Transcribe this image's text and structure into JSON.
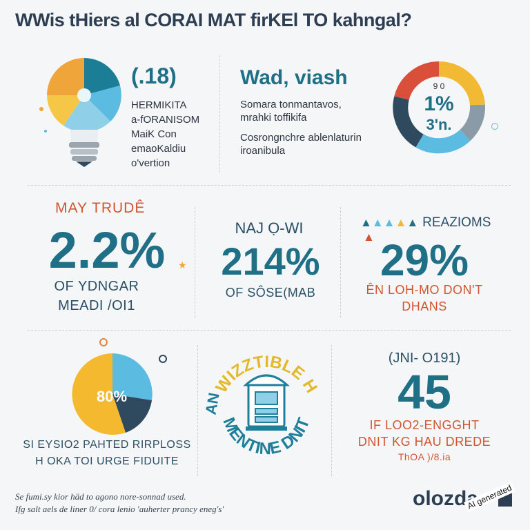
{
  "title": "WWis tHiers al CORAI MAT firKEl TO kahngal?",
  "top_left": {
    "value": "(.18)",
    "lines": [
      "HERMIKITA",
      "a-fORANISOM",
      "MaiK Con",
      "emaoKaldiu",
      "o'vertion"
    ]
  },
  "top_middle": {
    "heading": "Wad, viash",
    "lines": [
      "Somara tonmantavos,",
      "mrahki toffikifa",
      "Cosrongnchre ablenlaturin",
      "iroanibula"
    ]
  },
  "top_right_donut": {
    "small_label": "9 0",
    "percent": "1%",
    "sub": "3'n.",
    "colors": [
      "#f2b934",
      "#8a9aa6",
      "#5bbbe0",
      "#2f4a5e",
      "#d94f3a"
    ]
  },
  "stat1": {
    "label": "MAY TRUDÊ",
    "value": "2.2%",
    "cap1": "OF YDNGAR",
    "cap2": "MEADI /OI1"
  },
  "stat2": {
    "label": "NAJ Ọ-WI",
    "value": "214%",
    "cap1": "OF SÔSE(MAB"
  },
  "stat3": {
    "label": "REAZIOMS",
    "value": "29%",
    "cap1": "ÊN LOH-MO DON'T",
    "cap2": "DHANS"
  },
  "pie": {
    "label": "80%",
    "cap1": "SI EYSIO2 PAHTED RIRPLOSS",
    "cap2": "H OKA TOI URGE FIDUITE",
    "colors": [
      "#f4b92e",
      "#5bbbe0",
      "#2f4a5e"
    ]
  },
  "badge": {
    "arc_top": "WIZZTIBLE H",
    "arc_left": "AN",
    "arc_bottom": "MENTINE DNIT"
  },
  "stat4": {
    "label": "(JNI- O191)",
    "value": "45",
    "cap1": "IF LOO2-ENGGHT",
    "cap2": "DNIT KG HAU DREDE",
    "cap3": "ThOA )/8.ia"
  },
  "footer": {
    "line1": "Se fumi.sy kior häd to agono nore-sonnad used.",
    "line2": "Ifg salt aels de liner 0/ cora lenio 'auherter prancy eneg's'"
  },
  "brand": "olozda",
  "watermark": "AI generated"
}
